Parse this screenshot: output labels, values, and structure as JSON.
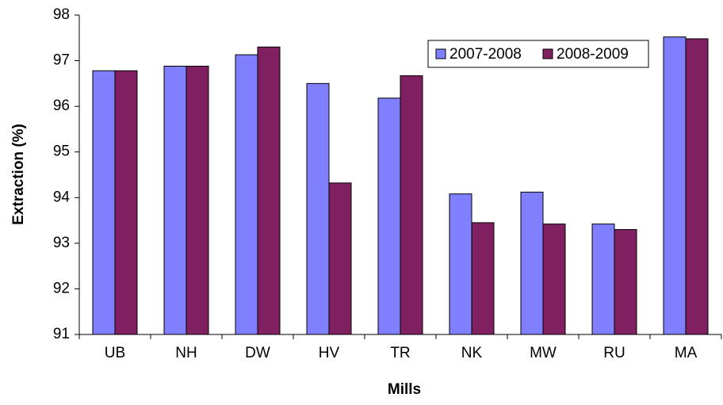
{
  "chart_data": {
    "type": "bar",
    "x_label": "Mills",
    "y_label": "Extraction (%)",
    "categories": [
      "UB",
      "NH",
      "DW",
      "HV",
      "TR",
      "NK",
      "MW",
      "RU",
      "MA"
    ],
    "series": [
      {
        "name": "2007-2008",
        "color": "#8080ff",
        "values": [
          96.78,
          96.88,
          97.13,
          96.5,
          96.18,
          94.08,
          94.12,
          93.42,
          97.52
        ]
      },
      {
        "name": "2008-2009",
        "color": "#802060",
        "values": [
          96.78,
          96.88,
          97.3,
          94.32,
          96.67,
          93.45,
          93.42,
          93.3,
          97.48
        ]
      }
    ],
    "ylim": [
      91,
      98
    ],
    "yticks": [
      91,
      92,
      93,
      94,
      95,
      96,
      97,
      98
    ],
    "grid": false,
    "legend": "upper right"
  }
}
